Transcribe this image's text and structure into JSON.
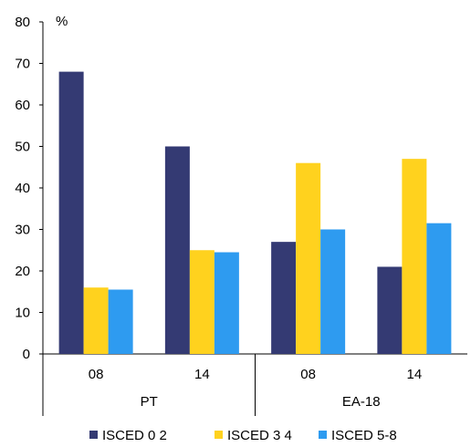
{
  "chart_data": {
    "type": "bar",
    "unit_label": "%",
    "ylim": [
      0,
      80
    ],
    "yticks": [
      "0",
      "10",
      "20",
      "30",
      "40",
      "50",
      "60",
      "70",
      "80"
    ],
    "groups": [
      {
        "label": "PT",
        "categories": [
          "08",
          "14"
        ]
      },
      {
        "label": "EA-18",
        "categories": [
          "08",
          "14"
        ]
      }
    ],
    "series": [
      {
        "name": "ISCED 0  2",
        "color": "#343a73",
        "values": [
          68,
          50,
          27,
          21
        ]
      },
      {
        "name": "ISCED 3  4",
        "color": "#ffd21e",
        "values": [
          16,
          25,
          46,
          47
        ]
      },
      {
        "name": "ISCED 5-8",
        "color": "#2e9bf0",
        "values": [
          15.5,
          24.5,
          30,
          31.5
        ]
      }
    ],
    "grid": false,
    "legend_position": "bottom"
  }
}
